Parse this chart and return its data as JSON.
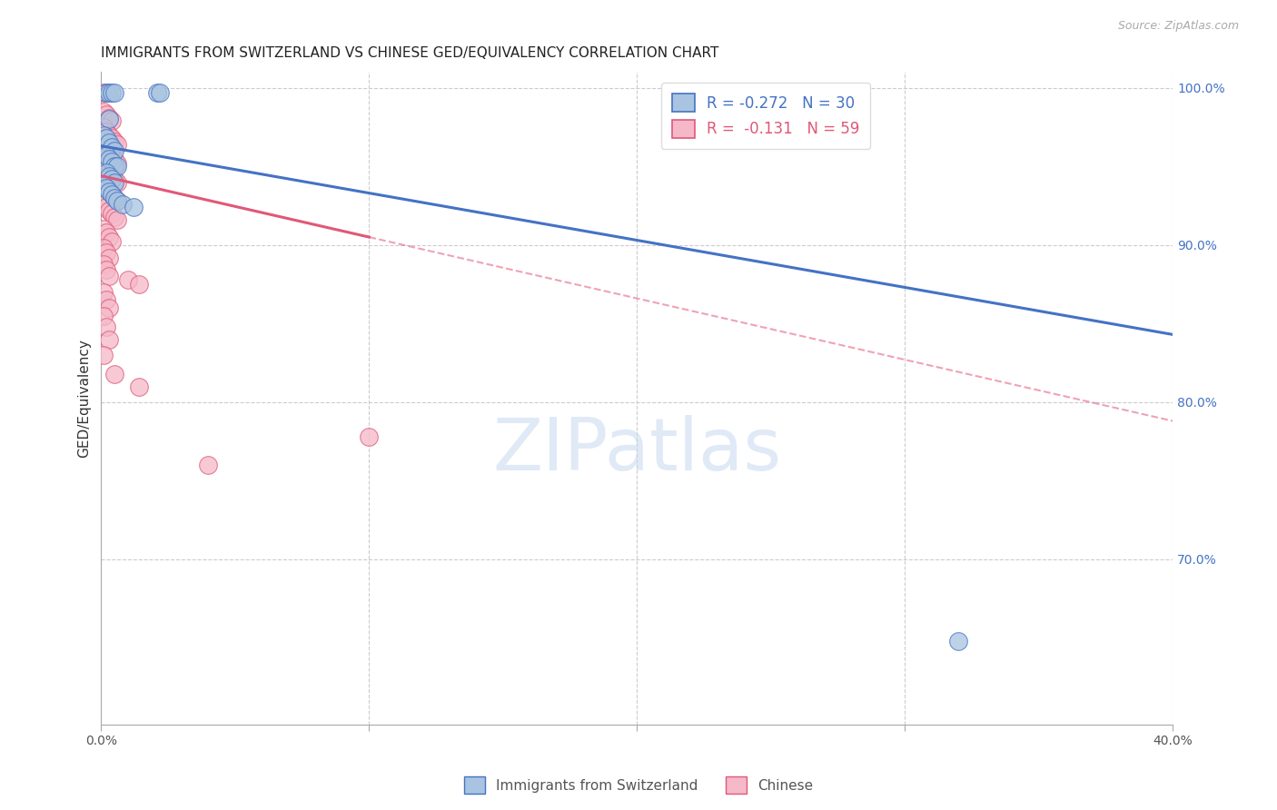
{
  "title": "IMMIGRANTS FROM SWITZERLAND VS CHINESE GED/EQUIVALENCY CORRELATION CHART",
  "source": "Source: ZipAtlas.com",
  "ylabel": "GED/Equivalency",
  "legend_entries": [
    {
      "label_r": "R = -0.272",
      "label_n": "N = 30",
      "color": "#a8c4e0",
      "line_color": "#4472c4"
    },
    {
      "label_r": "R =  -0.131",
      "label_n": "N = 59",
      "color": "#f5b8c8",
      "line_color": "#e05878"
    }
  ],
  "swiss_scatter": [
    [
      0.002,
      0.997
    ],
    [
      0.003,
      0.997
    ],
    [
      0.004,
      0.997
    ],
    [
      0.005,
      0.997
    ],
    [
      0.021,
      0.997
    ],
    [
      0.022,
      0.997
    ],
    [
      0.003,
      0.98
    ],
    [
      0.001,
      0.97
    ],
    [
      0.002,
      0.968
    ],
    [
      0.003,
      0.965
    ],
    [
      0.004,
      0.962
    ],
    [
      0.005,
      0.96
    ],
    [
      0.002,
      0.957
    ],
    [
      0.003,
      0.955
    ],
    [
      0.004,
      0.953
    ],
    [
      0.005,
      0.95
    ],
    [
      0.006,
      0.95
    ],
    [
      0.002,
      0.946
    ],
    [
      0.003,
      0.944
    ],
    [
      0.004,
      0.942
    ],
    [
      0.005,
      0.94
    ],
    [
      0.001,
      0.938
    ],
    [
      0.002,
      0.936
    ],
    [
      0.003,
      0.934
    ],
    [
      0.004,
      0.932
    ],
    [
      0.005,
      0.93
    ],
    [
      0.006,
      0.928
    ],
    [
      0.008,
      0.926
    ],
    [
      0.012,
      0.924
    ],
    [
      0.32,
      0.648
    ]
  ],
  "chinese_scatter": [
    [
      0.001,
      0.997
    ],
    [
      0.002,
      0.997
    ],
    [
      0.001,
      0.985
    ],
    [
      0.002,
      0.983
    ],
    [
      0.003,
      0.981
    ],
    [
      0.004,
      0.979
    ],
    [
      0.001,
      0.975
    ],
    [
      0.002,
      0.972
    ],
    [
      0.003,
      0.97
    ],
    [
      0.004,
      0.968
    ],
    [
      0.005,
      0.966
    ],
    [
      0.006,
      0.964
    ],
    [
      0.001,
      0.962
    ],
    [
      0.002,
      0.96
    ],
    [
      0.003,
      0.958
    ],
    [
      0.004,
      0.956
    ],
    [
      0.005,
      0.954
    ],
    [
      0.006,
      0.952
    ],
    [
      0.001,
      0.95
    ],
    [
      0.002,
      0.948
    ],
    [
      0.003,
      0.946
    ],
    [
      0.004,
      0.944
    ],
    [
      0.005,
      0.942
    ],
    [
      0.006,
      0.94
    ],
    [
      0.001,
      0.938
    ],
    [
      0.002,
      0.936
    ],
    [
      0.003,
      0.934
    ],
    [
      0.004,
      0.932
    ],
    [
      0.005,
      0.93
    ],
    [
      0.006,
      0.928
    ],
    [
      0.001,
      0.926
    ],
    [
      0.002,
      0.924
    ],
    [
      0.003,
      0.922
    ],
    [
      0.004,
      0.92
    ],
    [
      0.005,
      0.918
    ],
    [
      0.006,
      0.916
    ],
    [
      0.001,
      0.91
    ],
    [
      0.002,
      0.908
    ],
    [
      0.003,
      0.905
    ],
    [
      0.004,
      0.902
    ],
    [
      0.001,
      0.898
    ],
    [
      0.002,
      0.895
    ],
    [
      0.003,
      0.892
    ],
    [
      0.001,
      0.888
    ],
    [
      0.002,
      0.884
    ],
    [
      0.003,
      0.88
    ],
    [
      0.01,
      0.878
    ],
    [
      0.014,
      0.875
    ],
    [
      0.001,
      0.87
    ],
    [
      0.002,
      0.865
    ],
    [
      0.003,
      0.86
    ],
    [
      0.001,
      0.855
    ],
    [
      0.002,
      0.848
    ],
    [
      0.003,
      0.84
    ],
    [
      0.001,
      0.83
    ],
    [
      0.005,
      0.818
    ],
    [
      0.014,
      0.81
    ],
    [
      0.1,
      0.778
    ],
    [
      0.04,
      0.76
    ]
  ],
  "swiss_line": {
    "x0": 0.0,
    "y0": 0.963,
    "x1": 0.4,
    "y1": 0.843
  },
  "chinese_solid_line": {
    "x0": 0.0,
    "y0": 0.944,
    "x1": 0.1,
    "y1": 0.905
  },
  "chinese_dashed_line": {
    "x0": 0.1,
    "y0": 0.905,
    "x1": 0.4,
    "y1": 0.788
  },
  "swiss_line_color": "#4472c4",
  "chinese_line_color": "#e05878",
  "swiss_scatter_color": "#a8c4e0",
  "chinese_scatter_color": "#f5b8c8",
  "grid_color": "#cccccc",
  "xlim": [
    0.0,
    0.4
  ],
  "ylim": [
    0.595,
    1.01
  ],
  "yticks": [
    1.0,
    0.9,
    0.8,
    0.7
  ],
  "ytick_labels": [
    "100.0%",
    "90.0%",
    "80.0%",
    "70.0%"
  ],
  "xticks": [
    0.0,
    0.1,
    0.2,
    0.3,
    0.4
  ],
  "xtick_labels_show": [
    "0.0%",
    "",
    "",
    "",
    "40.0%"
  ],
  "bg_color": "#ffffff",
  "watermark_text": "ZIPatlas",
  "title_fontsize": 11,
  "source_fontsize": 9,
  "legend_label_swiss": "Immigrants from Switzerland",
  "legend_label_chinese": "Chinese"
}
